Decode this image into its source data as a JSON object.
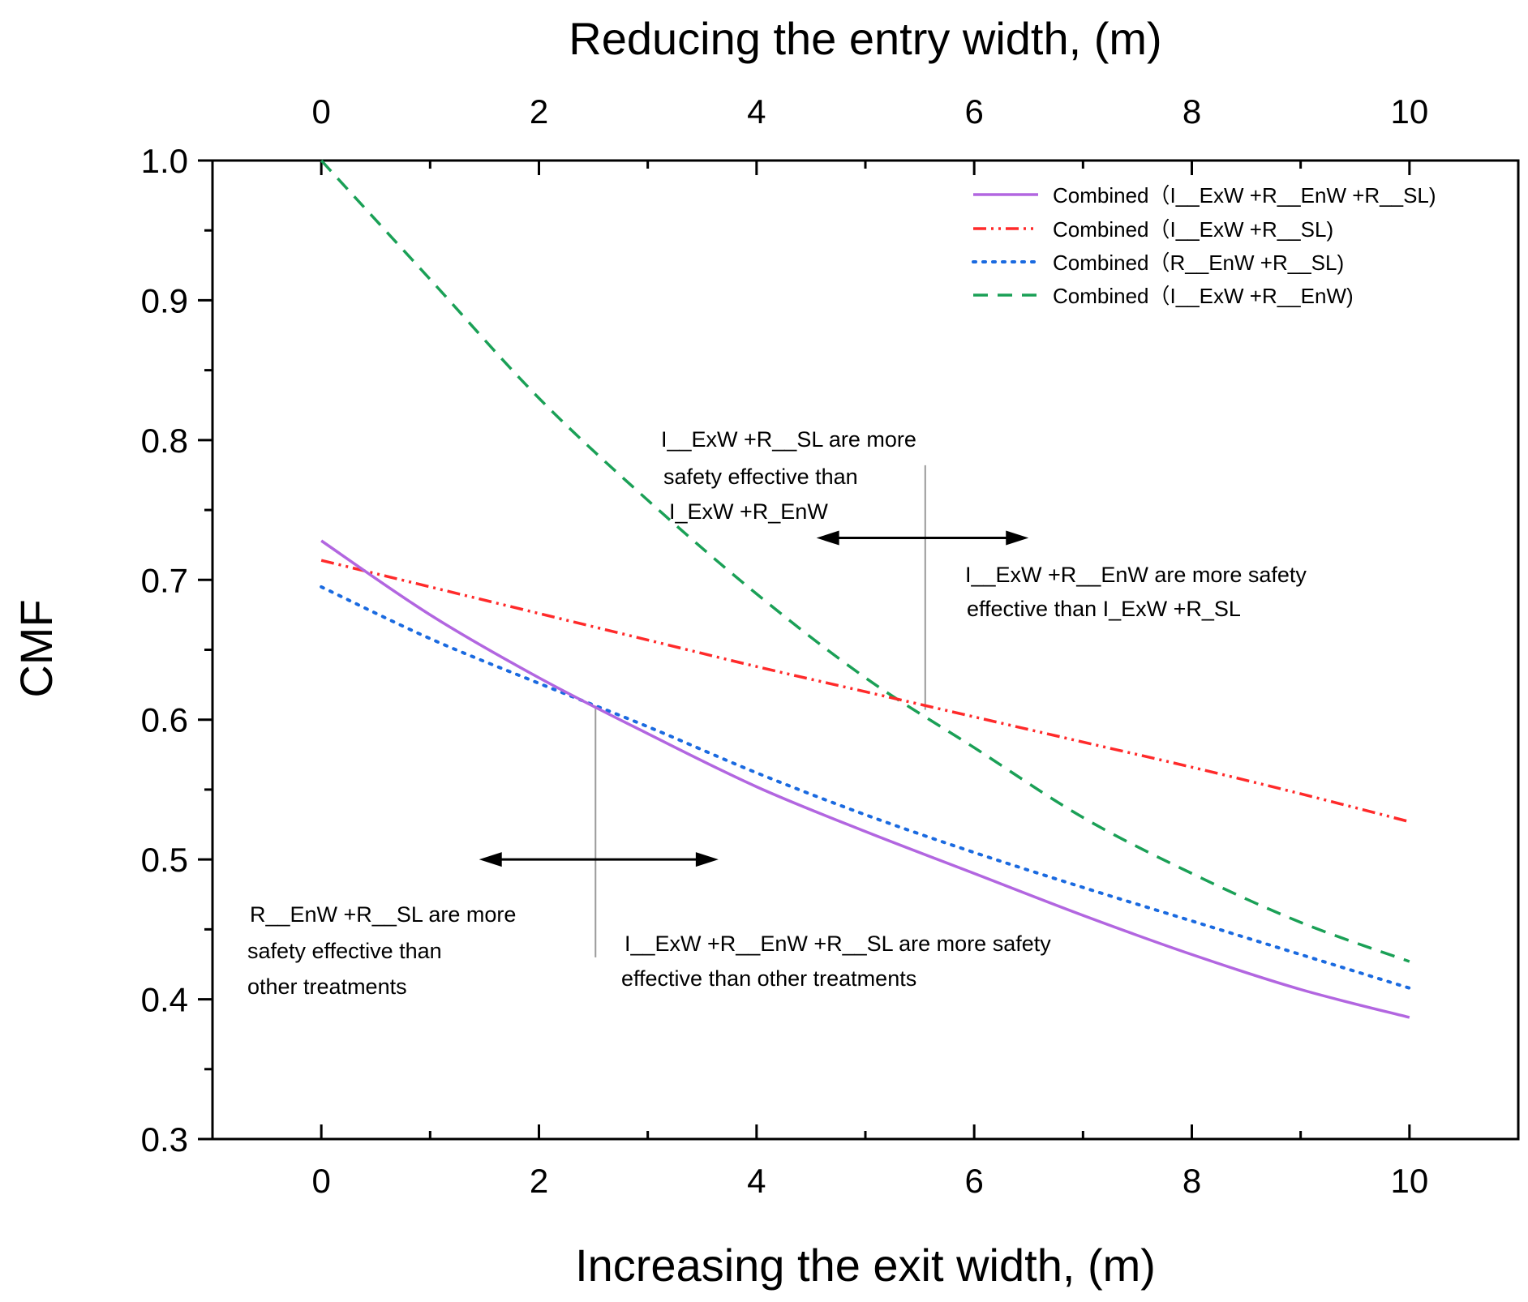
{
  "chart_data": {
    "type": "line",
    "title": "",
    "xlabel": "Increasing the exit width, (m)",
    "x2label": "Reducing the entry width, (m)",
    "ylabel": "CMF",
    "xlim": [
      -1,
      11
    ],
    "ylim": [
      0.3,
      1.0
    ],
    "x_ticks": [
      "0",
      "2",
      "4",
      "6",
      "8",
      "10"
    ],
    "x_tick_values": [
      0,
      2,
      4,
      6,
      8,
      10
    ],
    "y_ticks": [
      "0.3",
      "0.4",
      "0.5",
      "0.6",
      "0.7",
      "0.8",
      "0.9",
      "1.0"
    ],
    "y_tick_values": [
      0.3,
      0.4,
      0.5,
      0.6,
      0.7,
      0.8,
      0.9,
      1.0
    ],
    "x": [
      0,
      1,
      2,
      3,
      4,
      5,
      6,
      7,
      8,
      9,
      10
    ],
    "series": [
      {
        "name": "Combined（I__ExW +R__EnW +R__SL)",
        "color": "#b266e0",
        "style": "solid",
        "values": [
          0.728,
          0.675,
          0.63,
          0.59,
          0.552,
          0.52,
          0.49,
          0.46,
          0.432,
          0.407,
          0.387
        ]
      },
      {
        "name": "Combined（I__ExW +R__SL)",
        "color": "#ff2a2a",
        "style": "dashdotdot",
        "values": [
          0.714,
          0.695,
          0.676,
          0.657,
          0.638,
          0.62,
          0.602,
          0.584,
          0.566,
          0.547,
          0.527
        ]
      },
      {
        "name": "Combined（R__EnW +R__SL)",
        "color": "#1a6ae0",
        "style": "dotted",
        "values": [
          0.695,
          0.658,
          0.626,
          0.595,
          0.562,
          0.532,
          0.505,
          0.48,
          0.456,
          0.432,
          0.408
        ]
      },
      {
        "name": "Combined（I__ExW +R__EnW)",
        "color": "#1aa056",
        "style": "dashed",
        "values": [
          1.0,
          0.915,
          0.83,
          0.757,
          0.69,
          0.63,
          0.58,
          0.53,
          0.49,
          0.455,
          0.427
        ]
      }
    ],
    "legend_position": "top-right",
    "annotations": [
      {
        "id": "note-top-left",
        "lines": [
          "I__ExW +R__SL  are more",
          "safety effective than",
          "I_ExW +R_EnW"
        ]
      },
      {
        "id": "note-top-right",
        "lines": [
          "I__ExW +R__EnW  are more safety",
          "effective than I_ExW +R_SL"
        ]
      },
      {
        "id": "note-bottom-left",
        "lines": [
          "R__EnW +R__SL are more",
          "safety effective than",
          "other treatments"
        ]
      },
      {
        "id": "note-bottom-right",
        "lines": [
          "I__ExW +R__EnW +R__SL  are more safety",
          "effective than other treatments"
        ]
      }
    ],
    "markers": [
      {
        "id": "divider-upper",
        "x": 5.55,
        "y_from": 0.607,
        "y_to": 0.782
      },
      {
        "id": "divider-lower",
        "x": 2.52,
        "y_from": 0.43,
        "y_to": 0.61
      },
      {
        "id": "arrow-upper",
        "x_from": 4.55,
        "x_to": 6.5,
        "y": 0.73
      },
      {
        "id": "arrow-lower",
        "x_from": 1.45,
        "x_to": 3.65,
        "y": 0.5
      }
    ]
  }
}
